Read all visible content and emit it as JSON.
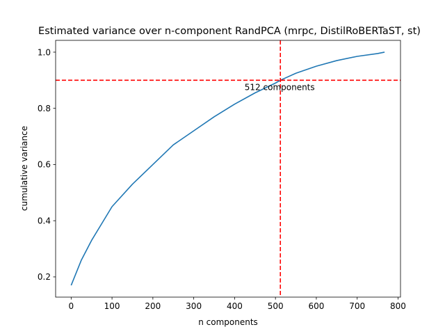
{
  "chart_data": {
    "type": "line",
    "title": "Estimated variance over n-component RandPCA (mrpc, DistilRoBERTaST, st)",
    "xlabel": "n components",
    "ylabel": "cumulative variance",
    "xlim": [
      -38,
      806
    ],
    "ylim": [
      0.128,
      1.042
    ],
    "xticks": [
      0,
      100,
      200,
      300,
      400,
      500,
      600,
      700,
      800
    ],
    "yticks": [
      0.2,
      0.4,
      0.6,
      0.8,
      1.0
    ],
    "xtick_labels": [
      "0",
      "100",
      "200",
      "300",
      "400",
      "500",
      "600",
      "700",
      "800"
    ],
    "ytick_labels": [
      "0.2",
      "0.4",
      "0.6",
      "0.8",
      "1.0"
    ],
    "grid": false,
    "series": [
      {
        "color": "#1f77b4",
        "x": [
          0,
          25,
          50,
          75,
          100,
          150,
          200,
          250,
          300,
          350,
          400,
          450,
          500,
          512,
          550,
          600,
          650,
          700,
          750,
          767
        ],
        "y": [
          0.17,
          0.26,
          0.33,
          0.39,
          0.45,
          0.53,
          0.6,
          0.67,
          0.72,
          0.77,
          0.815,
          0.855,
          0.89,
          0.9,
          0.925,
          0.95,
          0.97,
          0.985,
          0.995,
          1.0
        ]
      }
    ],
    "reference_lines": [
      {
        "orientation": "horizontal",
        "value": 0.9,
        "color": "#ff0000",
        "style": "dashed"
      },
      {
        "orientation": "vertical",
        "value": 512,
        "color": "#ff0000",
        "style": "dashed"
      }
    ],
    "annotations": [
      {
        "text": "512 components",
        "x": 512,
        "y": 0.9
      }
    ]
  }
}
